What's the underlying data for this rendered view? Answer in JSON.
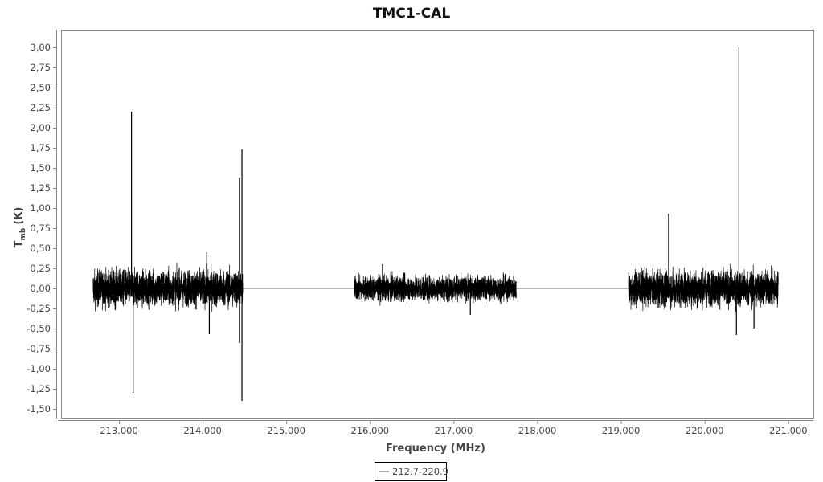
{
  "chart_data": {
    "type": "line",
    "title": "TMC1-CAL",
    "xlabel": "Frequency (MHz)",
    "ylabel_main": "T",
    "ylabel_sub": "mb",
    "ylabel_unit": "(K)",
    "xlim": [
      212.3,
      221.3
    ],
    "ylim": [
      -1.62,
      3.22
    ],
    "x_ticks": [
      213,
      214,
      215,
      216,
      217,
      218,
      219,
      220,
      221
    ],
    "x_tick_labels": [
      "213.000",
      "214.000",
      "215.000",
      "216.000",
      "217.000",
      "218.000",
      "219.000",
      "220.000",
      "221.000"
    ],
    "y_ticks": [
      3,
      2.75,
      2.5,
      2.25,
      2,
      1.75,
      1.5,
      1.25,
      1,
      0.75,
      0.5,
      0.25,
      0,
      -0.25,
      -0.5,
      -0.75,
      -1,
      -1.25,
      -1.5
    ],
    "y_tick_labels": [
      "3,00",
      "2,75",
      "2,50",
      "2,25",
      "2,00",
      "1,75",
      "1,50",
      "1,25",
      "1,00",
      "0,75",
      "0,50",
      "0,25",
      "0,00",
      "-0,25",
      "-0,50",
      "-0,75",
      "-1,00",
      "-1,25",
      "-1,50"
    ],
    "grid": false,
    "legend_position": "bottom-center",
    "series": [
      {
        "name": "212.7-220.9",
        "color": "#000000",
        "noise_segments": [
          {
            "x_start": 212.69,
            "x_end": 214.48,
            "rms": 0.11
          },
          {
            "x_start": 215.81,
            "x_end": 217.75,
            "rms": 0.075
          },
          {
            "x_start": 219.09,
            "x_end": 220.88,
            "rms": 0.11
          }
        ],
        "flat_segments": [
          {
            "x_start": 214.48,
            "x_end": 215.81,
            "y": 0
          },
          {
            "x_start": 217.75,
            "x_end": 219.09,
            "y": 0
          }
        ],
        "spikes": [
          {
            "x": 213.15,
            "y": 2.2
          },
          {
            "x": 213.17,
            "y": -1.3
          },
          {
            "x": 214.05,
            "y": 0.45
          },
          {
            "x": 214.08,
            "y": -0.57
          },
          {
            "x": 214.44,
            "y": 1.38
          },
          {
            "x": 214.44,
            "y": -0.68
          },
          {
            "x": 214.47,
            "y": 1.73
          },
          {
            "x": 214.47,
            "y": -1.4
          },
          {
            "x": 216.15,
            "y": 0.3
          },
          {
            "x": 217.2,
            "y": -0.33
          },
          {
            "x": 219.57,
            "y": 0.93
          },
          {
            "x": 220.41,
            "y": 3.0
          },
          {
            "x": 220.38,
            "y": -0.58
          },
          {
            "x": 220.59,
            "y": -0.5
          }
        ]
      }
    ]
  }
}
